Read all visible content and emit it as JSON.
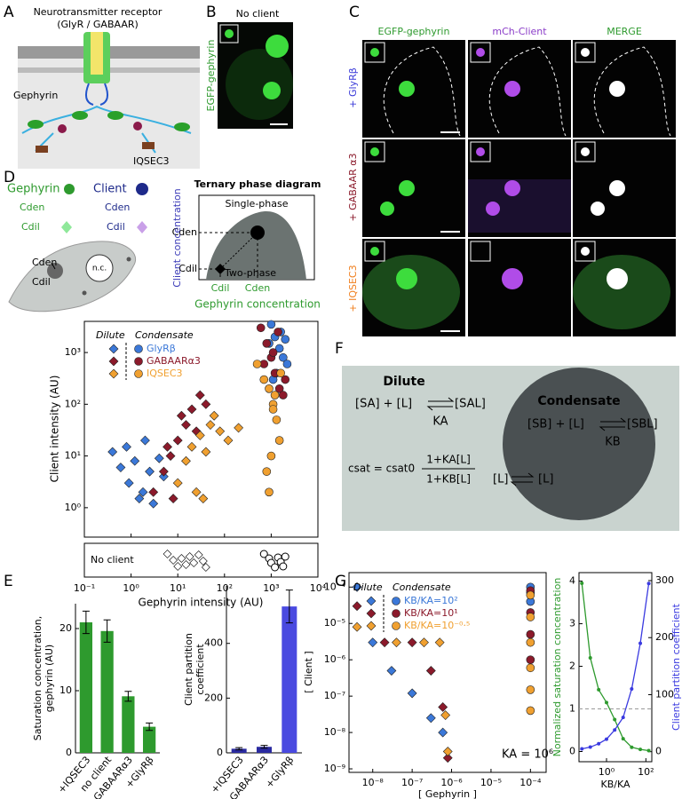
{
  "panel_labels": [
    "A",
    "B",
    "C",
    "D",
    "E",
    "F",
    "G"
  ],
  "panel_a": {
    "receptor": "Neurotransmitter receptor",
    "receptor_types": "(GlyR / GABAAR)",
    "gephyrin": "Gephyrin",
    "iqsec3": "IQSEC3"
  },
  "panel_b": {
    "condition": "No client",
    "channel": "EGFP-gephyrin"
  },
  "panel_c": {
    "columns": [
      "EGFP-gephyrin",
      "mCh-Client",
      "MERGE"
    ],
    "rows": [
      "+ GlyRβ",
      "+ GABAAR α3",
      "+ IQSEC3"
    ]
  },
  "panel_d": {
    "gephyrin": "Gephyrin",
    "client": "Client",
    "cden_geph": "Cden",
    "cden_client": "Cden",
    "cdil_geph": "Cdil",
    "cdil_client": "Cdil",
    "cell_cden": "Cden",
    "cell_cdil": "Cdil",
    "nucleus": "n.c.",
    "phase_title": "Ternary phase diagram",
    "single": "Single-phase",
    "two": "Two-phase",
    "axis_cden": "Cden",
    "axis_cdil": "Cdil",
    "x_cdil": "Cdil",
    "x_cden": "Cden",
    "ylabel": "Client concentration",
    "xlabel": "Gephyrin concentration"
  },
  "panel_f": {
    "dilute": "Dilute",
    "dilute_left": "[SA] + [L]",
    "dilute_right": "[SAL]",
    "ka": "KA",
    "condensate": "Condensate",
    "cond_left": "[SB] + [L]",
    "cond_right": "[SBL]",
    "kb": "KB",
    "csat": "csat = csat0",
    "numerator": "1+KA[L]",
    "denominator": "1+KB[L]",
    "l_left": "[L]",
    "l_right": "[L]"
  },
  "chart_data": [
    {
      "type": "scatter",
      "log_x": true,
      "log_y": true,
      "xlabel": "Gephyrin intensity (AU)",
      "ylabel": "Client intensity (AU)",
      "xlim": [
        0.1,
        10000
      ],
      "ylim": [
        0.27,
        4000
      ],
      "xticks": [
        {
          "value": 0.1,
          "label": "10⁻¹"
        },
        {
          "value": 1,
          "label": "10⁰"
        },
        {
          "value": 10,
          "label": "10¹"
        },
        {
          "value": 100,
          "label": "10²"
        },
        {
          "value": 1000,
          "label": "10³"
        },
        {
          "value": 10000,
          "label": "10⁴"
        }
      ],
      "yticks": [
        {
          "value": 1,
          "label": "10⁰"
        },
        {
          "value": 10,
          "label": "10¹"
        },
        {
          "value": 100,
          "label": "10²"
        },
        {
          "value": 1000,
          "label": "10³"
        }
      ],
      "legend_headers": [
        "Dilute",
        "Condensate"
      ],
      "series": [
        {
          "name": "GlyRβ",
          "color": "#3b78d8",
          "dilute_x": [
            0.4,
            0.6,
            0.9,
            1.2,
            1.8,
            2.5,
            3,
            4,
            0.8,
            1.5,
            2,
            5
          ],
          "dilute_values": [
            12,
            6,
            3,
            8,
            2,
            5,
            1.2,
            9,
            15,
            1.5,
            20,
            4
          ],
          "condensate_x": [
            1000,
            1200,
            1500,
            1800,
            2200,
            1300,
            900,
            1600,
            2000,
            1100
          ],
          "condensate_values": [
            3500,
            2000,
            1200,
            800,
            600,
            400,
            1500,
            2500,
            1800,
            300
          ]
        },
        {
          "name": "GABAARα3",
          "color": "#8b1a2b",
          "dilute_x": [
            3,
            5,
            7,
            10,
            15,
            20,
            30,
            40,
            8,
            12,
            25,
            6
          ],
          "dilute_values": [
            2,
            5,
            10,
            20,
            40,
            80,
            150,
            100,
            1.5,
            60,
            30,
            15
          ],
          "condensate_x": [
            600,
            800,
            1000,
            1200,
            1500,
            1800,
            700,
            1100,
            1400,
            2000
          ],
          "condensate_values": [
            3000,
            1500,
            800,
            400,
            200,
            150,
            600,
            1000,
            2500,
            300
          ]
        },
        {
          "name": "IQSEC3",
          "color": "#f0a030",
          "dilute_x": [
            10,
            15,
            20,
            30,
            50,
            80,
            120,
            200,
            25,
            40,
            60,
            35
          ],
          "dilute_values": [
            3,
            8,
            15,
            25,
            40,
            30,
            20,
            35,
            2,
            12,
            60,
            1.5
          ],
          "condensate_x": [
            500,
            700,
            900,
            1100,
            1300,
            1500,
            1000,
            800,
            1200,
            1600,
            900,
            1100
          ],
          "condensate_values": [
            600,
            300,
            200,
            100,
            50,
            20,
            10,
            5,
            150,
            400,
            2,
            80
          ]
        }
      ],
      "no_client": {
        "label": "No client",
        "dilute_x": [
          6,
          8,
          10,
          12,
          15,
          18,
          22,
          28,
          35,
          40
        ],
        "condensate_x": [
          700,
          900,
          1000,
          1200,
          1400,
          1600,
          1800,
          2000
        ]
      }
    },
    {
      "type": "bar",
      "ylabel_lines": [
        "Saturation concentration,",
        "gephyrin (AU)"
      ],
      "categories": [
        "+IQSEC3",
        "no client",
        "+GABAARα3",
        "+GlyRβ"
      ],
      "values": [
        21,
        19.6,
        9.1,
        4.2
      ],
      "errors": [
        1.8,
        1.8,
        0.8,
        0.6
      ],
      "colors": [
        "#2e9a2e",
        "#2e9a2e",
        "#2e9a2e",
        "#2e9a2e"
      ],
      "ylim": [
        0,
        24
      ],
      "yticks": [
        0,
        10,
        20
      ]
    },
    {
      "type": "bar",
      "ylabel_lines": [
        "Client partition",
        "coefficient"
      ],
      "categories": [
        "+IQSEC3",
        "+GABAARα3",
        "+GlyRβ"
      ],
      "values": [
        15,
        22,
        535
      ],
      "errors": [
        4,
        5,
        60
      ],
      "colors": [
        "#2a2aa0",
        "#2a2aa0",
        "#4a4ae0"
      ],
      "ylim": [
        0,
        610
      ],
      "yticks": [
        0,
        200,
        400
      ]
    },
    {
      "type": "scatter",
      "log_x": true,
      "log_y": true,
      "xlabel": "[ Gephyrin ]",
      "ylabel": "[ Client ]",
      "annotation": "KA = 10⁶",
      "xlim": [
        2.5e-09,
        0.00025
      ],
      "ylim": [
        8e-10,
        0.00025
      ],
      "xticks": [
        {
          "value": 1e-08,
          "label": "10⁻⁸"
        },
        {
          "value": 1e-07,
          "label": "10⁻⁷"
        },
        {
          "value": 1e-06,
          "label": "10⁻⁶"
        },
        {
          "value": 1e-05,
          "label": "10⁻⁵"
        },
        {
          "value": 0.0001,
          "label": "10⁻⁴"
        }
      ],
      "yticks": [
        {
          "value": 1e-09,
          "label": "10⁻⁹"
        },
        {
          "value": 1e-08,
          "label": "10⁻⁸"
        },
        {
          "value": 1e-07,
          "label": "10⁻⁷"
        },
        {
          "value": 1e-06,
          "label": "10⁻⁶"
        },
        {
          "value": 1e-05,
          "label": "10⁻⁵"
        },
        {
          "value": 0.0001,
          "label": "10⁻⁴"
        }
      ],
      "legend_headers": [
        "Dilute",
        "Condensate"
      ],
      "series": [
        {
          "name": "KB/KA=10²",
          "color": "#3b78d8",
          "dilute_x": [
            4e-09,
            1e-08,
            3e-08,
            1e-07,
            3e-07,
            6e-07
          ],
          "dilute_values": [
            0.0001,
            3e-06,
            5e-07,
            1.2e-07,
            2.5e-08,
            1e-08
          ],
          "condensate_x": [
            0.0001,
            0.0001,
            0.0001
          ],
          "condensate_values": [
            0.0001,
            7e-05,
            4e-05
          ]
        },
        {
          "name": "KB/KA=10¹",
          "color": "#8b1a2b",
          "dilute_x": [
            4e-09,
            2e-08,
            1e-07,
            3e-07,
            6e-07,
            8e-07
          ],
          "dilute_values": [
            3e-05,
            3e-06,
            3e-06,
            5e-07,
            5e-08,
            2e-09
          ],
          "condensate_x": [
            0.0001,
            0.0001,
            0.0001,
            0.0001
          ],
          "condensate_values": [
            8e-05,
            2e-05,
            5e-06,
            1e-06
          ]
        },
        {
          "name": "KB/KA=10⁻⁰·⁵",
          "color": "#f0a030",
          "dilute_x": [
            4e-09,
            4e-08,
            2e-07,
            5e-07,
            7e-07,
            8e-07
          ],
          "dilute_values": [
            8e-06,
            3e-06,
            3e-06,
            3e-06,
            3e-08,
            3e-09
          ],
          "condensate_x": [
            0.0001,
            0.0001,
            0.0001,
            0.0001,
            0.0001,
            0.0001
          ],
          "condensate_values": [
            6e-05,
            1.5e-05,
            3e-06,
            6e-07,
            1.5e-07,
            4e-08
          ]
        }
      ]
    },
    {
      "type": "line",
      "log_x": true,
      "xlabel": "KB/KA",
      "xlim": [
        0.04,
        200
      ],
      "xticks": [
        {
          "value": 1,
          "label": "10⁰"
        },
        {
          "value": 100,
          "label": "10²"
        }
      ],
      "ylim": [
        -0.24,
        4.2
      ],
      "yticks": [
        0,
        1,
        2,
        3,
        4
      ],
      "y2lim": [
        -17.6,
        314
      ],
      "y2ticks": [
        0,
        100,
        200,
        300
      ],
      "reference_line": 1,
      "x": [
        0.056,
        0.15,
        0.4,
        1,
        2.6,
        7,
        19,
        52,
        140
      ],
      "series": [
        {
          "name": "Normalized saturation concentration",
          "color": "#2e9a2e",
          "values": [
            3.95,
            2.2,
            1.45,
            1.15,
            0.75,
            0.3,
            0.1,
            0.05,
            0.02
          ]
        },
        {
          "name": "Client partition coefficient",
          "color": "#3a3ae0",
          "axis": "y2",
          "values": [
            5,
            8,
            14,
            22,
            38,
            60,
            110,
            190,
            295
          ]
        }
      ]
    }
  ]
}
